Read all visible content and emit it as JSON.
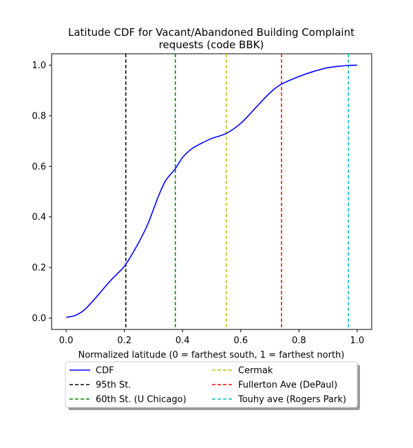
{
  "chart_data": {
    "type": "line",
    "title": "Latitude CDF for Vacant/Abandoned Building Complaint requests (code BBK)",
    "title_lines": [
      "Latitude CDF for Vacant/Abandoned Building Complaint",
      "requests (code BBK)"
    ],
    "xlabel": "Normalized latitude (0 = farthest south, 1 = farthest north)",
    "ylabel": "",
    "xlim": [
      -0.05,
      1.05
    ],
    "ylim": [
      -0.045,
      1.045
    ],
    "xticks": [
      0.0,
      0.2,
      0.4,
      0.6,
      0.8,
      1.0
    ],
    "xtick_labels": [
      "0.0",
      "0.2",
      "0.4",
      "0.6",
      "0.8",
      "1.0"
    ],
    "yticks": [
      0.0,
      0.2,
      0.4,
      0.6,
      0.8,
      1.0
    ],
    "ytick_labels": [
      "0.0",
      "0.2",
      "0.4",
      "0.6",
      "0.8",
      "1.0"
    ],
    "grid": false,
    "legend_placement": "below plot, two columns",
    "series": [
      {
        "name": "CDF",
        "color": "#0000ff",
        "style": "solid",
        "x": [
          0.0,
          0.03,
          0.06,
          0.09,
          0.12,
          0.15,
          0.18,
          0.2,
          0.22,
          0.25,
          0.28,
          0.3,
          0.32,
          0.34,
          0.36,
          0.375,
          0.4,
          0.43,
          0.46,
          0.5,
          0.55,
          0.6,
          0.65,
          0.7,
          0.74,
          0.8,
          0.85,
          0.9,
          0.95,
          0.97,
          1.0
        ],
        "y": [
          0.003,
          0.01,
          0.03,
          0.065,
          0.105,
          0.145,
          0.18,
          0.205,
          0.24,
          0.3,
          0.37,
          0.43,
          0.49,
          0.54,
          0.57,
          0.59,
          0.635,
          0.668,
          0.688,
          0.71,
          0.73,
          0.77,
          0.83,
          0.89,
          0.925,
          0.955,
          0.975,
          0.99,
          0.997,
          0.999,
          1.0
        ]
      }
    ],
    "vlines": [
      {
        "name": "95th St.",
        "x": 0.205,
        "color": "#000000"
      },
      {
        "name": "60th St. (U Chicago)",
        "x": 0.375,
        "color": "#008000"
      },
      {
        "name": "Cermak",
        "x": 0.55,
        "color": "#bfbf00"
      },
      {
        "name": "Fullerton Ave (DePaul)",
        "x": 0.74,
        "color": "#ff0000"
      },
      {
        "name": "Touhy ave (Rogers Park)",
        "x": 0.97,
        "color": "#00bfbf"
      }
    ],
    "legend_entries": [
      "CDF",
      "95th St.",
      "60th St. (U Chicago)",
      "Cermak",
      "Fullerton Ave (DePaul)",
      "Touhy ave (Rogers Park)"
    ]
  }
}
